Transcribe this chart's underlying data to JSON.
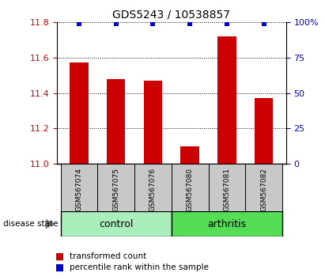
{
  "title": "GDS5243 / 10538857",
  "samples": [
    "GSM567074",
    "GSM567075",
    "GSM567076",
    "GSM567080",
    "GSM567081",
    "GSM567082"
  ],
  "bar_values": [
    11.575,
    11.48,
    11.47,
    11.1,
    11.72,
    11.37
  ],
  "percentile_values": [
    99,
    99,
    99,
    99,
    99,
    99
  ],
  "ylim_left": [
    11.0,
    11.8
  ],
  "ylim_right": [
    0,
    100
  ],
  "yticks_left": [
    11.0,
    11.2,
    11.4,
    11.6,
    11.8
  ],
  "yticks_right": [
    0,
    25,
    50,
    75,
    100
  ],
  "bar_color": "#cc0000",
  "percentile_color": "#0000cc",
  "control_color": "#aaeebb",
  "arthritis_color": "#55dd55",
  "xticklabel_area_color": "#c8c8c8",
  "group_label_control": "control",
  "group_label_arthritis": "arthritis",
  "disease_state_label": "disease state",
  "legend_bar_label": "transformed count",
  "legend_pct_label": "percentile rank within the sample",
  "bar_width": 0.5,
  "title_fontsize": 10
}
